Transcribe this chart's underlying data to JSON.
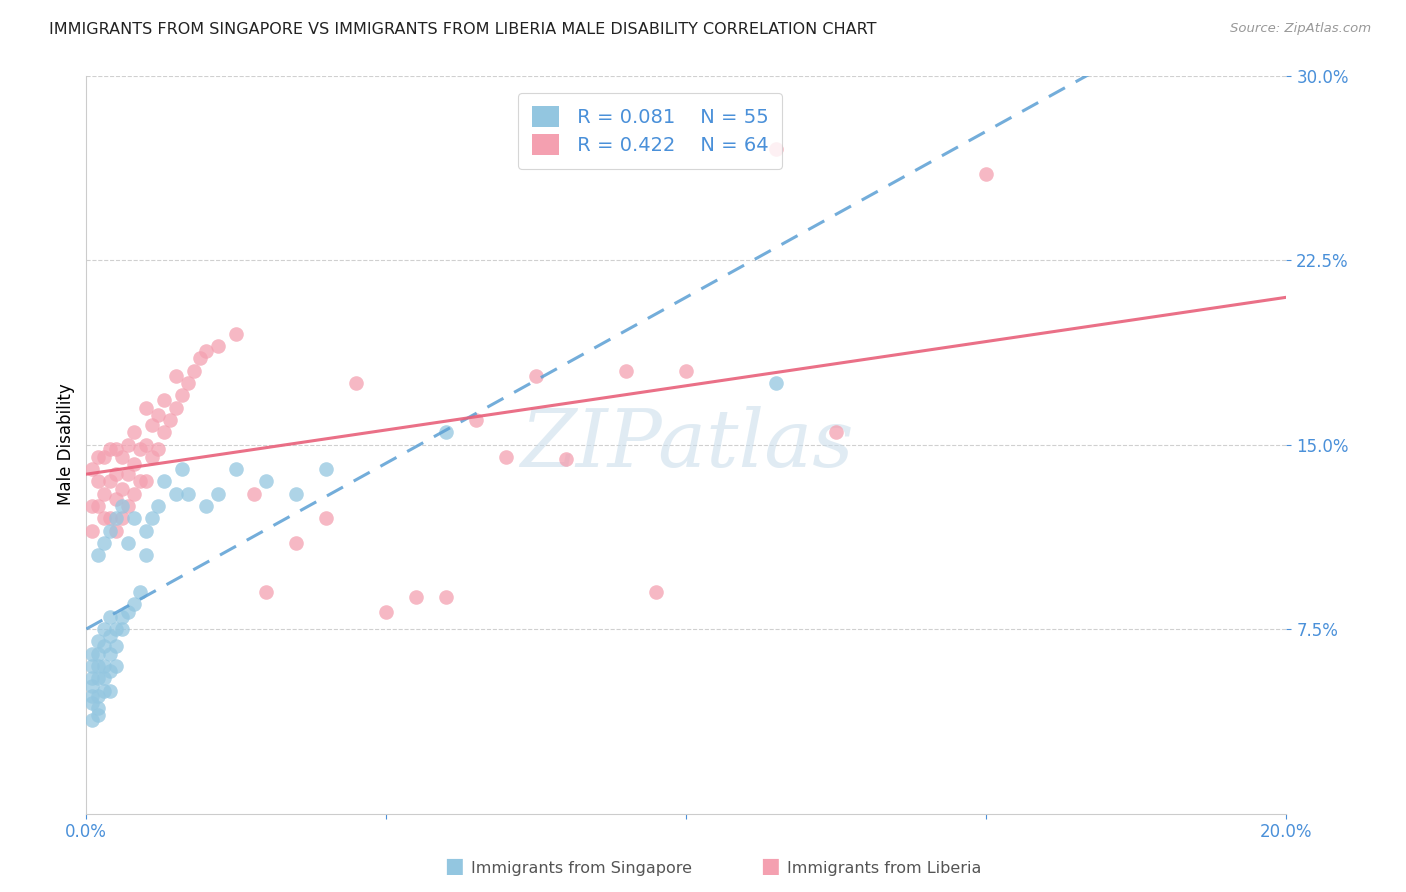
{
  "title": "IMMIGRANTS FROM SINGAPORE VS IMMIGRANTS FROM LIBERIA MALE DISABILITY CORRELATION CHART",
  "source": "Source: ZipAtlas.com",
  "ylabel": "Male Disability",
  "xlim": [
    0.0,
    0.2
  ],
  "ylim": [
    0.0,
    0.3
  ],
  "yticks": [
    0.075,
    0.15,
    0.225,
    0.3
  ],
  "yticklabels": [
    "7.5%",
    "15.0%",
    "22.5%",
    "30.0%"
  ],
  "singapore_color": "#93C6E0",
  "liberia_color": "#F4A0B0",
  "singapore_R": 0.081,
  "singapore_N": 55,
  "liberia_R": 0.422,
  "liberia_N": 64,
  "singapore_line_color": "#5B9FD4",
  "liberia_line_color": "#E8607A",
  "watermark_text": "ZIPatlas",
  "sg_x": [
    0.001,
    0.001,
    0.001,
    0.001,
    0.001,
    0.001,
    0.001,
    0.002,
    0.002,
    0.002,
    0.002,
    0.002,
    0.002,
    0.002,
    0.002,
    0.003,
    0.003,
    0.003,
    0.003,
    0.003,
    0.003,
    0.004,
    0.004,
    0.004,
    0.004,
    0.004,
    0.004,
    0.005,
    0.005,
    0.005,
    0.005,
    0.006,
    0.006,
    0.006,
    0.007,
    0.007,
    0.008,
    0.008,
    0.009,
    0.01,
    0.01,
    0.011,
    0.012,
    0.013,
    0.015,
    0.016,
    0.017,
    0.02,
    0.022,
    0.025,
    0.03,
    0.035,
    0.04,
    0.06,
    0.115
  ],
  "sg_y": [
    0.038,
    0.045,
    0.048,
    0.052,
    0.055,
    0.06,
    0.065,
    0.04,
    0.043,
    0.048,
    0.055,
    0.06,
    0.065,
    0.07,
    0.105,
    0.05,
    0.055,
    0.06,
    0.068,
    0.075,
    0.11,
    0.05,
    0.058,
    0.065,
    0.072,
    0.08,
    0.115,
    0.06,
    0.068,
    0.075,
    0.12,
    0.075,
    0.08,
    0.125,
    0.082,
    0.11,
    0.085,
    0.12,
    0.09,
    0.105,
    0.115,
    0.12,
    0.125,
    0.135,
    0.13,
    0.14,
    0.13,
    0.125,
    0.13,
    0.14,
    0.135,
    0.13,
    0.14,
    0.155,
    0.175
  ],
  "lb_x": [
    0.001,
    0.001,
    0.001,
    0.002,
    0.002,
    0.002,
    0.003,
    0.003,
    0.003,
    0.004,
    0.004,
    0.004,
    0.005,
    0.005,
    0.005,
    0.005,
    0.006,
    0.006,
    0.006,
    0.007,
    0.007,
    0.007,
    0.008,
    0.008,
    0.008,
    0.009,
    0.009,
    0.01,
    0.01,
    0.01,
    0.011,
    0.011,
    0.012,
    0.012,
    0.013,
    0.013,
    0.014,
    0.015,
    0.015,
    0.016,
    0.017,
    0.018,
    0.019,
    0.02,
    0.022,
    0.025,
    0.028,
    0.03,
    0.035,
    0.04,
    0.045,
    0.05,
    0.055,
    0.06,
    0.065,
    0.07,
    0.075,
    0.08,
    0.09,
    0.095,
    0.1,
    0.115,
    0.125,
    0.15
  ],
  "lb_y": [
    0.115,
    0.125,
    0.14,
    0.125,
    0.135,
    0.145,
    0.12,
    0.13,
    0.145,
    0.12,
    0.135,
    0.148,
    0.115,
    0.128,
    0.138,
    0.148,
    0.12,
    0.132,
    0.145,
    0.125,
    0.138,
    0.15,
    0.13,
    0.142,
    0.155,
    0.135,
    0.148,
    0.135,
    0.15,
    0.165,
    0.145,
    0.158,
    0.148,
    0.162,
    0.155,
    0.168,
    0.16,
    0.165,
    0.178,
    0.17,
    0.175,
    0.18,
    0.185,
    0.188,
    0.19,
    0.195,
    0.13,
    0.09,
    0.11,
    0.12,
    0.175,
    0.082,
    0.088,
    0.088,
    0.16,
    0.145,
    0.178,
    0.144,
    0.18,
    0.09,
    0.18,
    0.27,
    0.155,
    0.26
  ]
}
